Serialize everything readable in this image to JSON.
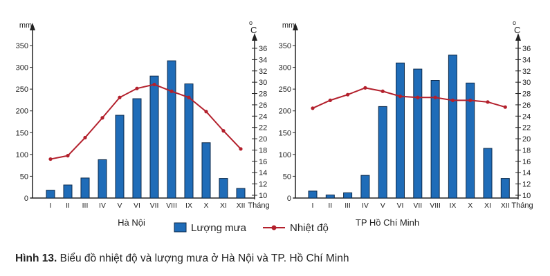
{
  "chart_data": [
    {
      "type": "bar+line",
      "title": "Hà Nội",
      "categories": [
        "I",
        "II",
        "III",
        "IV",
        "V",
        "VI",
        "VII",
        "VIII",
        "IX",
        "X",
        "XI",
        "XII"
      ],
      "xlabel": "Tháng",
      "ylabel_left": "mm",
      "ylabel_right": "oC",
      "ylim_left": [
        0,
        350
      ],
      "yticks_left": [
        0,
        50,
        100,
        150,
        200,
        250,
        300,
        350
      ],
      "ylim_right": [
        10,
        36
      ],
      "yticks_right": [
        10,
        12,
        14,
        16,
        18,
        20,
        22,
        24,
        26,
        28,
        30,
        32,
        34,
        36
      ],
      "series": [
        {
          "name": "Lượng mưa",
          "type": "bar",
          "values": [
            18,
            30,
            46,
            88,
            190,
            228,
            280,
            315,
            262,
            127,
            45,
            22
          ]
        },
        {
          "name": "Nhiệt độ",
          "type": "line",
          "values": [
            16.4,
            17.0,
            20.2,
            23.7,
            27.3,
            28.9,
            29.6,
            28.4,
            27.3,
            24.8,
            21.4,
            18.2
          ]
        }
      ]
    },
    {
      "type": "bar+line",
      "title": "TP Hồ Chí Minh",
      "categories": [
        "I",
        "II",
        "III",
        "IV",
        "V",
        "VI",
        "VII",
        "VIII",
        "IX",
        "X",
        "XI",
        "XII"
      ],
      "xlabel": "Tháng",
      "ylabel_left": "mm",
      "ylabel_right": "oC",
      "ylim_left": [
        0,
        350
      ],
      "yticks_left": [
        0,
        50,
        100,
        150,
        200,
        250,
        300,
        350
      ],
      "ylim_right": [
        10,
        36
      ],
      "yticks_right": [
        10,
        12,
        14,
        16,
        18,
        20,
        22,
        24,
        26,
        28,
        30,
        32,
        34,
        36
      ],
      "series": [
        {
          "name": "Lượng mưa",
          "type": "bar",
          "values": [
            16,
            7,
            12,
            52,
            210,
            310,
            296,
            270,
            328,
            264,
            114,
            45
          ]
        },
        {
          "name": "Nhiệt độ",
          "type": "line",
          "values": [
            25.4,
            26.8,
            27.8,
            29.0,
            28.4,
            27.5,
            27.3,
            27.3,
            26.8,
            26.8,
            26.5,
            25.6
          ]
        }
      ]
    }
  ],
  "legend": {
    "rain": "Lượng mưa",
    "temp": "Nhiệt độ"
  },
  "colors": {
    "bar": "#1f6cb8",
    "bar_border": "#0d2a4a",
    "line": "#b3202c",
    "axis": "#222222"
  },
  "caption": {
    "label": "Hình 13.",
    "text": " Biểu đồ nhiệt độ và lượng mưa ở Hà Nội và TP. Hồ Chí Minh"
  }
}
